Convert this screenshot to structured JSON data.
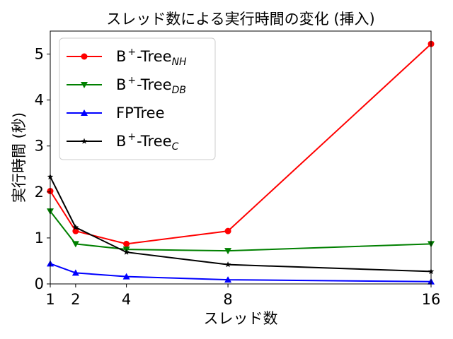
{
  "chart_data": {
    "type": "line",
    "title": "スレッド数による実行時間の変化 (挿入)",
    "xlabel": "スレッド数",
    "ylabel": "実行時間 (秒)",
    "x": [
      1,
      2,
      4,
      8,
      16
    ],
    "x_ticks": [
      1,
      2,
      4,
      8,
      16
    ],
    "y_ticks": [
      0,
      1,
      2,
      3,
      4,
      5
    ],
    "xlim": [
      1,
      16
    ],
    "ylim": [
      0,
      5.5
    ],
    "grid": false,
    "legend_position": "top-left",
    "series": [
      {
        "name": "B+-TreeNH",
        "legend_base": "B",
        "legend_sup": "+",
        "legend_mid": "-Tree",
        "legend_sub": "NH",
        "color": "#ff0000",
        "marker": "circle",
        "values": [
          2.02,
          1.15,
          0.87,
          1.15,
          5.22
        ]
      },
      {
        "name": "B+-TreeDB",
        "legend_base": "B",
        "legend_sup": "+",
        "legend_mid": "-Tree",
        "legend_sub": "DB",
        "color": "#008000",
        "marker": "triangle-down",
        "values": [
          1.58,
          0.87,
          0.75,
          0.72,
          0.87
        ]
      },
      {
        "name": "FPTree",
        "legend_base": "FPTree",
        "legend_sup": "",
        "legend_mid": "",
        "legend_sub": "",
        "color": "#0000ff",
        "marker": "triangle-up",
        "values": [
          0.44,
          0.24,
          0.16,
          0.09,
          0.05
        ]
      },
      {
        "name": "B+-TreeC",
        "legend_base": "B",
        "legend_sup": "+",
        "legend_mid": "-Tree",
        "legend_sub": "C",
        "color": "#000000",
        "marker": "star",
        "values": [
          2.33,
          1.23,
          0.69,
          0.42,
          0.27
        ]
      }
    ]
  }
}
